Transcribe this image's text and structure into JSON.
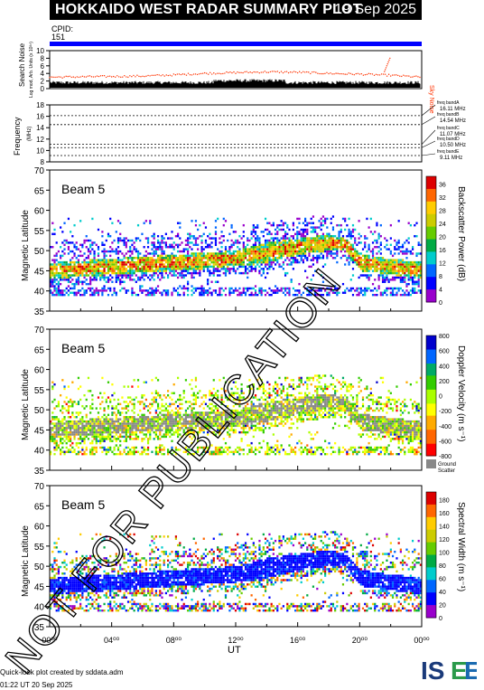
{
  "header": {
    "title": "HOKKAIDO WEST RADAR SUMMARY PLOT",
    "date": "19 Sep 2025",
    "cpid_label": "CPID:",
    "cpid_value": "151"
  },
  "noise_panel": {
    "ylabel": "Search Noise",
    "ylabel_sub": "Log mod, Arb. Units (x 10³⁴)",
    "right_label": "Sky Noise",
    "yticks": [
      "0",
      "2",
      "4",
      "6",
      "8",
      "10"
    ]
  },
  "freq_panel": {
    "ylabel": "Frequency",
    "ylabel_sub": "(MHz)",
    "yticks": [
      "8",
      "10",
      "12",
      "14",
      "16",
      "18"
    ],
    "bands": [
      {
        "name": "freq bandA",
        "value": "16.11 MHz"
      },
      {
        "name": "freq bandB",
        "value": "14.54 MHz"
      },
      {
        "name": "freq bandC",
        "value": "11.07 MHz"
      },
      {
        "name": "freq bandD",
        "value": "10.50 MHz"
      },
      {
        "name": "freq bandE",
        "value": "9.11 MHz"
      }
    ]
  },
  "panels": [
    {
      "beam": "Beam  5",
      "ylabel": "Magnetic Latitude",
      "cb_label": "Backscatter Power (dB)",
      "cb_ticks": [
        "0",
        "4",
        "8",
        "12",
        "16",
        "20",
        "24",
        "28",
        "32",
        "36"
      ]
    },
    {
      "beam": "Beam  5",
      "ylabel": "Magnetic Latitude",
      "cb_label": "Doppler Velocity (m s⁻¹)",
      "cb_ticks": [
        "-800",
        "-600",
        "-400",
        "-200",
        "0",
        "200",
        "400",
        "600",
        "800"
      ],
      "ground_scatter": "Ground Scatter"
    },
    {
      "beam": "Beam  5",
      "ylabel": "Magnetic Latitude",
      "cb_label": "Spectral Width (m s⁻¹)",
      "cb_ticks": [
        "0",
        "20",
        "40",
        "60",
        "80",
        "100",
        "120",
        "140",
        "160",
        "180"
      ]
    }
  ],
  "lat_ticks": [
    "35",
    "40",
    "45",
    "50",
    "55",
    "60",
    "65",
    "70"
  ],
  "xaxis": {
    "label": "UT",
    "ticks": [
      "00⁰⁰",
      "04⁰⁰",
      "08⁰⁰",
      "12⁰⁰",
      "16⁰⁰",
      "20⁰⁰",
      "00⁰⁰"
    ]
  },
  "watermark": "NOT FOR PUBLICATION",
  "footer": {
    "line1": "Quick-look plot created by sddata.adm",
    "line2": "01:22 UT 20 Sep 2025"
  },
  "logo_text": "ISEE",
  "colors": {
    "power_scale": [
      "#9900cc",
      "#0000ff",
      "#0066ff",
      "#00cccc",
      "#00aa44",
      "#66cc00",
      "#cccc00",
      "#ffcc00",
      "#ff6600",
      "#dd0000"
    ],
    "velocity_scale": [
      "#ff0000",
      "#ff6600",
      "#ffaa00",
      "#ffff00",
      "#aaff00",
      "#33cc00",
      "#00aa66",
      "#0066ff",
      "#0000cc"
    ],
    "ground": "#888888",
    "cpid_bar": "#0000ff",
    "sky_noise": "#ff3300"
  },
  "chart_data": [
    {
      "type": "line",
      "title": "Search Noise",
      "x_range_hours": [
        0,
        24
      ],
      "ylim": [
        0,
        10
      ],
      "series": [
        {
          "name": "Sky Noise",
          "x": [
            0,
            2,
            4,
            6,
            8,
            10,
            12,
            14,
            16,
            18,
            20,
            22,
            24
          ],
          "values": [
            3.0,
            3.1,
            3.2,
            3.3,
            3.6,
            4.0,
            4.2,
            4.4,
            4.3,
            4.0,
            3.8,
            3.5,
            3.0
          ]
        }
      ]
    },
    {
      "type": "line",
      "title": "Frequency",
      "ylim": [
        8,
        18
      ],
      "series": [
        {
          "name": "freq bandA",
          "values": [
            16.11
          ]
        },
        {
          "name": "freq bandB",
          "values": [
            14.54
          ]
        },
        {
          "name": "freq bandC",
          "values": [
            11.07
          ]
        },
        {
          "name": "freq bandD",
          "values": [
            10.5
          ]
        },
        {
          "name": "freq bandE",
          "values": [
            9.11
          ]
        }
      ]
    },
    {
      "type": "heatmap",
      "title": "Beam 5 Backscatter Power",
      "x_range_hours": [
        0,
        24
      ],
      "ylim": [
        35,
        70
      ],
      "zlim": [
        0,
        36
      ],
      "scatter_band": {
        "x": [
          0,
          2,
          4,
          6,
          8,
          10,
          12,
          14,
          16,
          18,
          19,
          20,
          22,
          24
        ],
        "lower": [
          43,
          43.5,
          44,
          44.5,
          45,
          45.5,
          46,
          47,
          49,
          50,
          50,
          45,
          44,
          43
        ],
        "upper": [
          47,
          47.5,
          48,
          48.5,
          49,
          49.5,
          50,
          52,
          53,
          54,
          53,
          49,
          48,
          47
        ]
      }
    },
    {
      "type": "heatmap",
      "title": "Beam 5 Doppler Velocity",
      "x_range_hours": [
        0,
        24
      ],
      "ylim": [
        35,
        70
      ],
      "zlim": [
        -800,
        800
      ]
    },
    {
      "type": "heatmap",
      "title": "Beam 5 Spectral Width",
      "x_range_hours": [
        0,
        24
      ],
      "ylim": [
        35,
        70
      ],
      "zlim": [
        0,
        180
      ]
    }
  ]
}
